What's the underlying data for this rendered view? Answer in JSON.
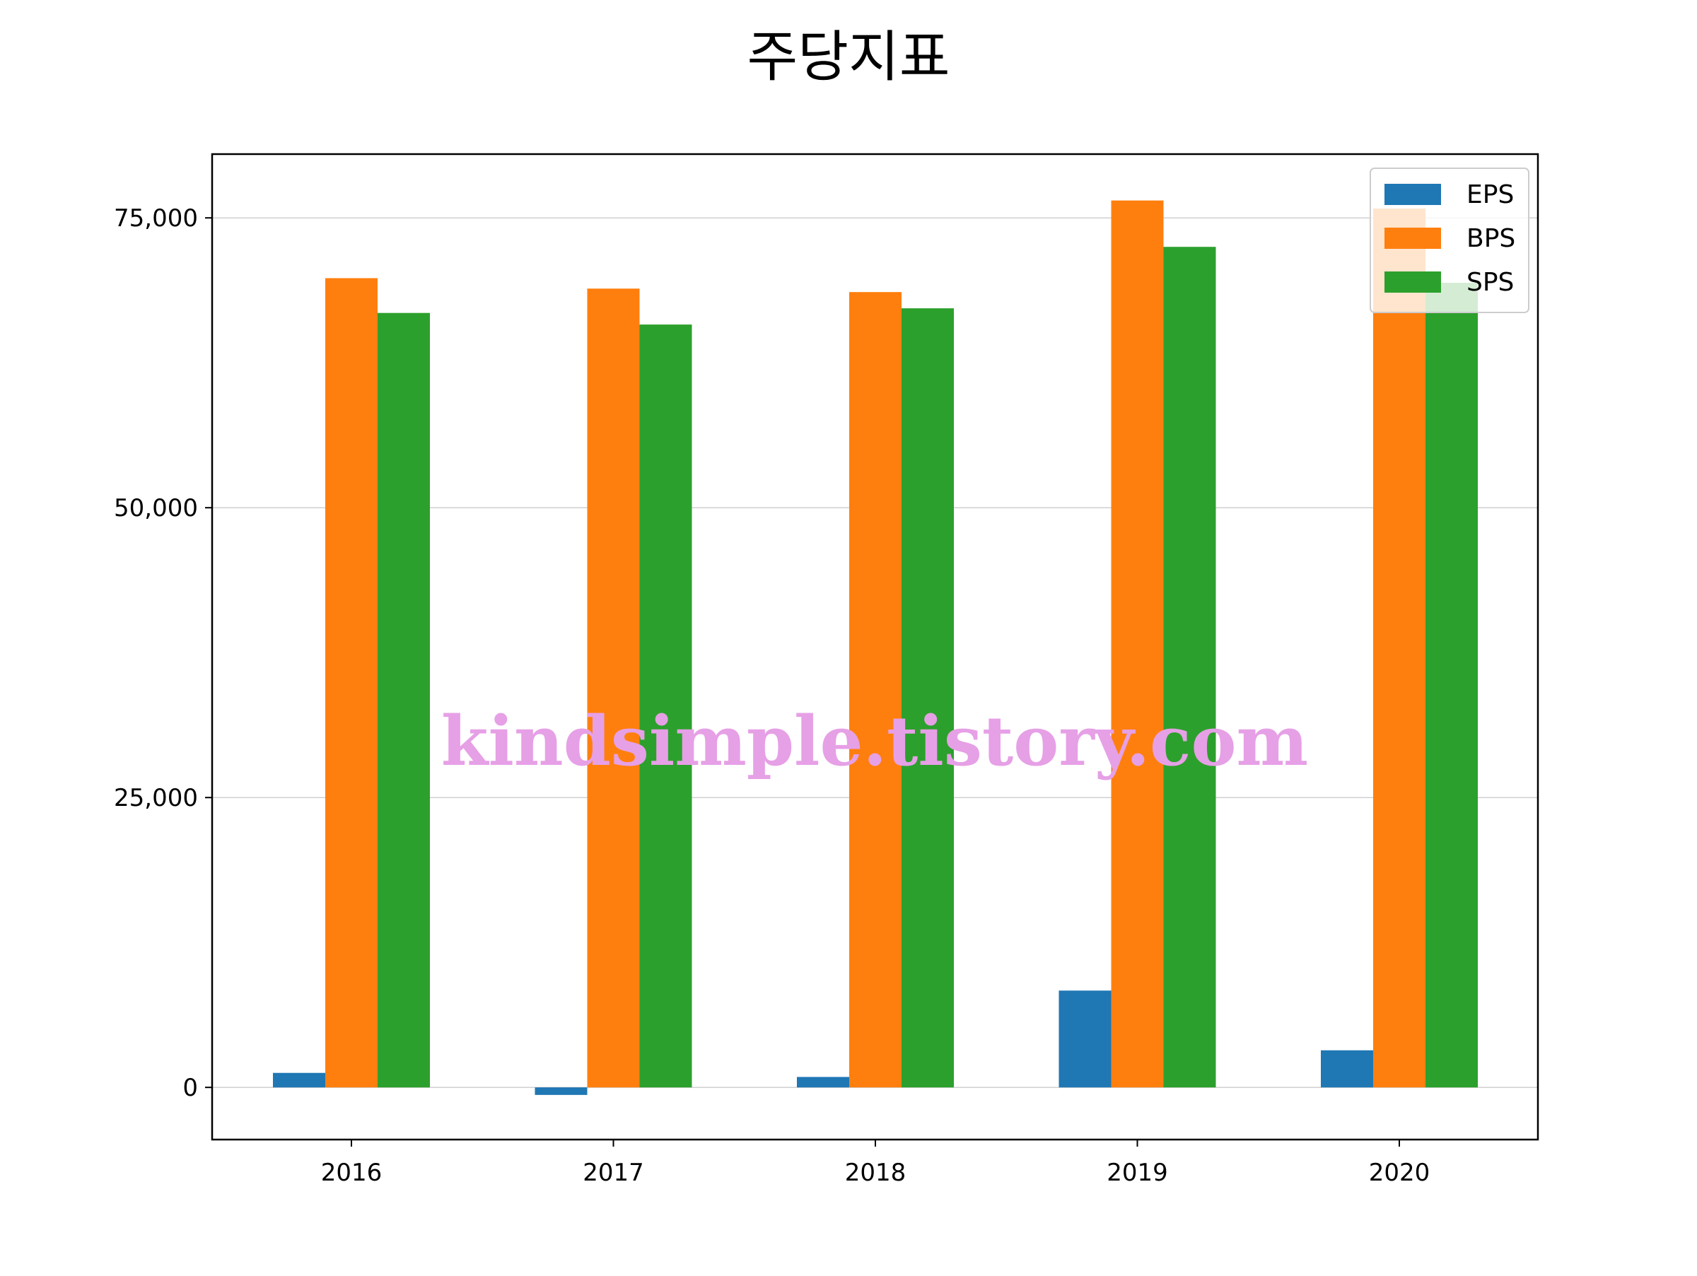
{
  "chart_data": {
    "type": "bar",
    "title": "주당지표",
    "categories": [
      "2016",
      "2017",
      "2018",
      "2019",
      "2020"
    ],
    "series": [
      {
        "name": "EPS",
        "color": "#1f77b4",
        "values": [
          1250,
          -650,
          900,
          8350,
          3200
        ]
      },
      {
        "name": "BPS",
        "color": "#ff7f0e",
        "values": [
          69800,
          68900,
          68600,
          76500,
          75800
        ]
      },
      {
        "name": "SPS",
        "color": "#2ca02c",
        "values": [
          66800,
          65800,
          67200,
          72500,
          69400
        ]
      }
    ],
    "yticks": [
      0,
      25000,
      50000,
      75000
    ],
    "ytick_labels": [
      "0",
      "25,000",
      "50,000",
      "75,000"
    ],
    "ylim": [
      -4500,
      80500
    ],
    "grid": "horizontal",
    "legend": "top-right",
    "watermark": "kindsimple.tistory.com"
  }
}
